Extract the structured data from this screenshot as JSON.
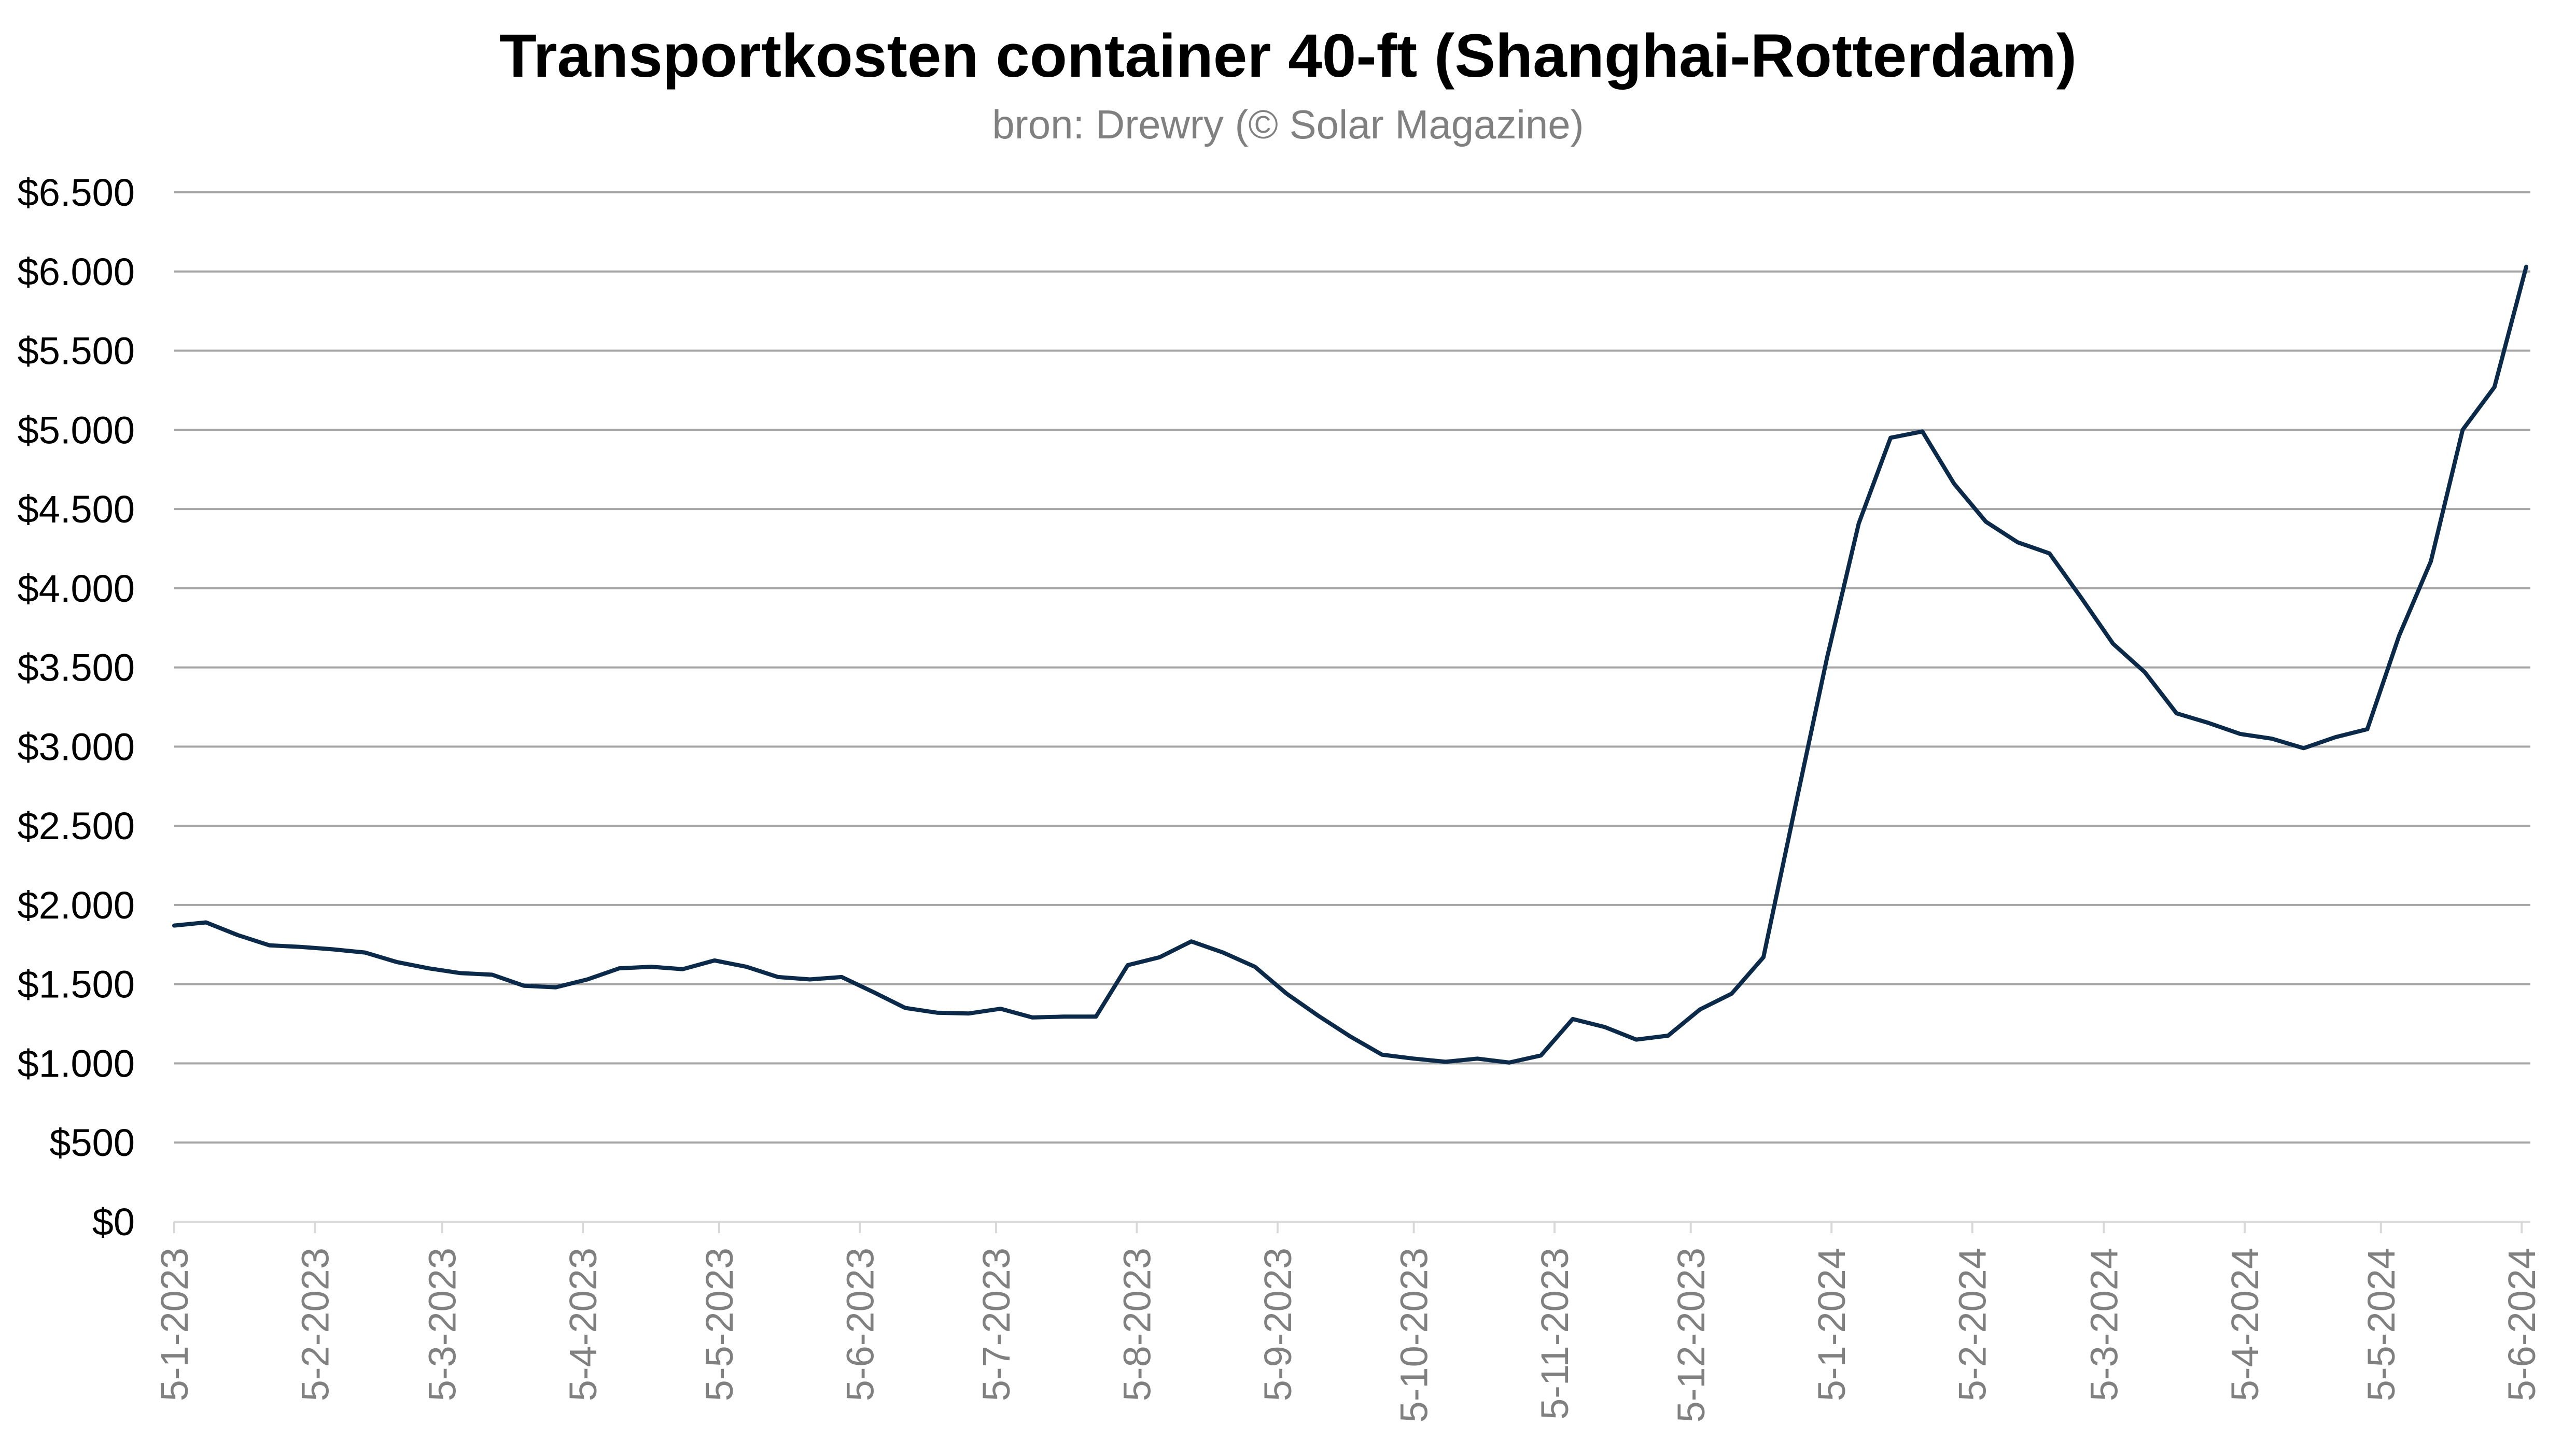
{
  "chart_data": {
    "type": "line",
    "title": "Transportkosten container 40-ft (Shanghai-Rotterdam)",
    "subtitle": "bron: Drewry (© Solar Magazine)",
    "xlabel": "",
    "ylabel": "",
    "ylim": [
      0,
      6500
    ],
    "y_ticks": [
      0,
      500,
      1000,
      1500,
      2000,
      2500,
      3000,
      3500,
      4000,
      4500,
      5000,
      5500,
      6000,
      6500
    ],
    "y_tick_labels": [
      "$0",
      "$500",
      "$1.000",
      "$1.500",
      "$2.000",
      "$2.500",
      "$3.000",
      "$3.500",
      "$4.000",
      "$4.500",
      "$5.000",
      "$5.500",
      "$6.000",
      "$6.500"
    ],
    "x_tick_labels": [
      "5-1-2023",
      "5-2-2023",
      "5-3-2023",
      "5-4-2023",
      "5-5-2023",
      "5-6-2023",
      "5-7-2023",
      "5-8-2023",
      "5-9-2023",
      "5-10-2023",
      "5-11-2023",
      "5-12-2023",
      "5-1-2024",
      "5-2-2024",
      "5-3-2024",
      "5-4-2024",
      "5-5-2024",
      "5-6-2024"
    ],
    "x_tick_days": [
      0,
      31,
      59,
      90,
      120,
      151,
      181,
      212,
      243,
      273,
      304,
      334,
      365,
      396,
      425,
      456,
      486,
      517
    ],
    "x_interval_days": 7,
    "grid": true,
    "legend": "none",
    "color": "#0b2a4a",
    "series": [
      {
        "name": "Transportkosten",
        "values": [
          1870,
          1890,
          1810,
          1745,
          1735,
          1720,
          1700,
          1640,
          1600,
          1570,
          1560,
          1490,
          1480,
          1530,
          1600,
          1610,
          1595,
          1650,
          1610,
          1545,
          1530,
          1545,
          1450,
          1350,
          1320,
          1315,
          1345,
          1290,
          1295,
          1295,
          1620,
          1670,
          1770,
          1700,
          1610,
          1440,
          1300,
          1170,
          1055,
          1030,
          1010,
          1030,
          1005,
          1050,
          1280,
          1230,
          1150,
          1175,
          1340,
          1440,
          1670,
          2620,
          3560,
          4410,
          4950,
          4990,
          4660,
          4420,
          4290,
          4220,
          3940,
          3650,
          3470,
          3210,
          3150,
          3080,
          3050,
          2990,
          3060,
          3110,
          3700,
          4170,
          5000,
          5270,
          6030
        ]
      }
    ]
  }
}
